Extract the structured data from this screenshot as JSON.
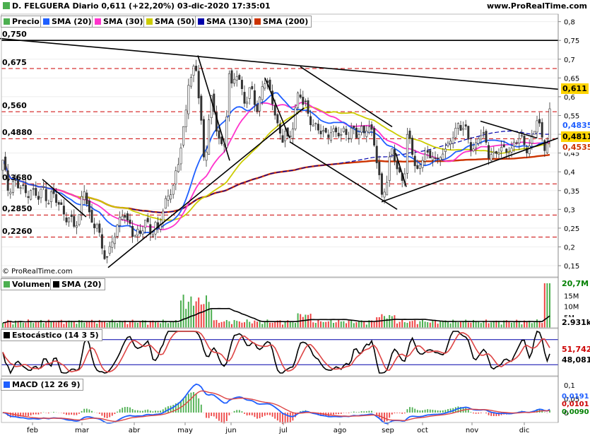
{
  "header": {
    "title": "D. FELGUERA Diario 0,611 (+22,20%) 03-dic-2020 17:35:01",
    "site": "www.ProRealTime.com",
    "copyright": "© ProRealTime.com"
  },
  "colors": {
    "price": "#4caf50",
    "sma20": "#1f5fff",
    "sma30": "#ff33cc",
    "sma50": "#cccc00",
    "sma130": "#0000aa",
    "sma200": "#cc3300",
    "candle_up": "#008000",
    "candle_down": "#cc0000",
    "dashed": "#cc0000"
  },
  "price_panel": {
    "legend": [
      {
        "label": "Precio",
        "color": "#4caf50",
        "icon": "candle-icon"
      },
      {
        "label": "SMA (20)",
        "color": "#1f5fff"
      },
      {
        "label": "SMA (30)",
        "color": "#ff33cc"
      },
      {
        "label": "SMA (50)",
        "color": "#cccc00"
      },
      {
        "label": "SMA (130)",
        "color": "#0000aa"
      },
      {
        "label": "SMA (200)",
        "color": "#cc3300"
      }
    ],
    "y_ticks": [
      "0,8",
      "0,75",
      "0,7",
      "0,65",
      "0,6",
      "0,55",
      "0,5",
      "0,45",
      "0,4",
      "0,35",
      "0,3",
      "0,25",
      "0,2",
      "0,15"
    ],
    "level_labels": [
      "0,750",
      "0,675",
      "0,560",
      "0,4880",
      "0,3680",
      "0,2850",
      "0,2260"
    ],
    "right_tags": [
      {
        "text": "0,611",
        "color": "#000000",
        "bg": "#ffd400"
      },
      {
        "text": "0,4835",
        "color": "#1f5fff",
        "bg": "#ffffff"
      },
      {
        "text": "0,4811",
        "color": "#000000",
        "bg": "#ffd400"
      },
      {
        "text": "0,4535",
        "color": "#cc3300",
        "bg": "#ffffff"
      }
    ]
  },
  "volume_panel": {
    "legend": [
      {
        "label": "Volumen",
        "color": "#4caf50"
      },
      {
        "label": "SMA (20)",
        "color": "#000000"
      }
    ],
    "y_ticks": [
      "15M",
      "10M",
      "5M"
    ],
    "right_tags": [
      {
        "text": "20,7M",
        "color": "#008000"
      },
      {
        "text": "2.931k",
        "color": "#000000"
      }
    ]
  },
  "stochastic_panel": {
    "legend": "Estocástico (14 3 5)",
    "right_tags": [
      {
        "text": "51,742",
        "color": "#cc0000"
      },
      {
        "text": "48,081",
        "color": "#000000"
      }
    ]
  },
  "macd_panel": {
    "legend": "MACD (12 26 9)",
    "y_ticks": [
      "0,1",
      "0,05",
      "0"
    ],
    "right_tags": [
      {
        "text": "0,0191",
        "color": "#1f5fff"
      },
      {
        "text": "0,0101",
        "color": "#cc0000"
      },
      {
        "text": "0,0090",
        "color": "#008000"
      }
    ]
  },
  "x_axis": {
    "months": [
      "feb",
      "mar",
      "abr",
      "may",
      "jun",
      "jul",
      "ago",
      "sep",
      "oct",
      "nov",
      "dic"
    ]
  },
  "chart_data": {
    "type": "candlestick",
    "title": "D. FELGUERA Diario 0,611 (+22,20%) 03-dic-2020 17:35:01",
    "last_close": 0.611,
    "change_pct": 22.2,
    "ylim": [
      0.12,
      0.82
    ],
    "x_categories": [
      "feb",
      "mar",
      "abr",
      "may",
      "jun",
      "jul",
      "ago",
      "sep",
      "oct",
      "nov",
      "dic"
    ],
    "horizontal_levels": [
      0.75,
      0.675,
      0.56,
      0.488,
      0.368,
      0.285,
      0.226
    ],
    "price_path": [
      [
        0,
        0.4
      ],
      [
        3,
        0.43
      ],
      [
        6,
        0.41
      ],
      [
        9,
        0.37
      ],
      [
        12,
        0.35
      ],
      [
        16,
        0.37
      ],
      [
        20,
        0.38
      ],
      [
        24,
        0.36
      ],
      [
        28,
        0.36
      ],
      [
        32,
        0.35
      ],
      [
        36,
        0.34
      ],
      [
        40,
        0.35
      ],
      [
        44,
        0.36
      ],
      [
        48,
        0.34
      ],
      [
        52,
        0.33
      ],
      [
        56,
        0.33
      ],
      [
        60,
        0.36
      ],
      [
        64,
        0.34
      ],
      [
        68,
        0.33
      ],
      [
        72,
        0.34
      ],
      [
        76,
        0.33
      ],
      [
        80,
        0.32
      ],
      [
        84,
        0.31
      ],
      [
        88,
        0.3
      ],
      [
        92,
        0.29
      ],
      [
        96,
        0.28
      ],
      [
        100,
        0.27
      ],
      [
        104,
        0.25
      ],
      [
        108,
        0.26
      ],
      [
        112,
        0.28
      ],
      [
        116,
        0.34
      ],
      [
        120,
        0.37
      ],
      [
        124,
        0.3
      ],
      [
        128,
        0.26
      ],
      [
        132,
        0.25
      ],
      [
        136,
        0.27
      ],
      [
        140,
        0.24
      ],
      [
        144,
        0.21
      ],
      [
        148,
        0.18
      ],
      [
        152,
        0.16
      ],
      [
        156,
        0.19
      ],
      [
        160,
        0.23
      ],
      [
        164,
        0.24
      ],
      [
        168,
        0.27
      ],
      [
        172,
        0.3
      ],
      [
        176,
        0.28
      ],
      [
        180,
        0.25
      ],
      [
        184,
        0.26
      ],
      [
        188,
        0.24
      ],
      [
        192,
        0.23
      ],
      [
        196,
        0.25
      ],
      [
        200,
        0.24
      ],
      [
        204,
        0.25
      ],
      [
        208,
        0.26
      ],
      [
        212,
        0.25
      ],
      [
        216,
        0.24
      ],
      [
        220,
        0.26
      ],
      [
        224,
        0.25
      ],
      [
        228,
        0.27
      ],
      [
        232,
        0.29
      ],
      [
        236,
        0.33
      ],
      [
        240,
        0.36
      ],
      [
        244,
        0.35
      ],
      [
        248,
        0.39
      ],
      [
        252,
        0.42
      ],
      [
        256,
        0.46
      ],
      [
        260,
        0.51
      ],
      [
        264,
        0.58
      ],
      [
        268,
        0.68
      ],
      [
        272,
        0.64
      ],
      [
        276,
        0.7
      ],
      [
        280,
        0.62
      ],
      [
        284,
        0.55
      ],
      [
        288,
        0.43
      ],
      [
        292,
        0.47
      ],
      [
        296,
        0.56
      ],
      [
        300,
        0.6
      ],
      [
        304,
        0.53
      ],
      [
        308,
        0.5
      ],
      [
        312,
        0.47
      ],
      [
        316,
        0.46
      ],
      [
        320,
        0.54
      ],
      [
        324,
        0.66
      ],
      [
        328,
        0.62
      ],
      [
        332,
        0.65
      ],
      [
        336,
        0.66
      ],
      [
        340,
        0.63
      ],
      [
        344,
        0.62
      ],
      [
        348,
        0.58
      ],
      [
        352,
        0.6
      ],
      [
        356,
        0.62
      ],
      [
        360,
        0.59
      ],
      [
        364,
        0.56
      ],
      [
        368,
        0.6
      ],
      [
        372,
        0.65
      ],
      [
        376,
        0.64
      ],
      [
        380,
        0.61
      ],
      [
        384,
        0.6
      ],
      [
        388,
        0.57
      ],
      [
        392,
        0.53
      ],
      [
        396,
        0.51
      ],
      [
        400,
        0.49
      ],
      [
        404,
        0.5
      ],
      [
        408,
        0.47
      ],
      [
        412,
        0.51
      ],
      [
        416,
        0.54
      ],
      [
        420,
        0.6
      ],
      [
        424,
        0.62
      ],
      [
        428,
        0.58
      ],
      [
        432,
        0.57
      ],
      [
        436,
        0.55
      ],
      [
        440,
        0.54
      ],
      [
        444,
        0.53
      ],
      [
        448,
        0.52
      ],
      [
        452,
        0.51
      ],
      [
        456,
        0.5
      ],
      [
        460,
        0.49
      ],
      [
        464,
        0.5
      ],
      [
        468,
        0.52
      ],
      [
        472,
        0.51
      ],
      [
        476,
        0.5
      ],
      [
        480,
        0.5
      ],
      [
        484,
        0.49
      ],
      [
        488,
        0.51
      ],
      [
        492,
        0.5
      ],
      [
        496,
        0.52
      ],
      [
        500,
        0.51
      ],
      [
        504,
        0.49
      ],
      [
        508,
        0.5
      ],
      [
        512,
        0.51
      ],
      [
        516,
        0.5
      ],
      [
        520,
        0.54
      ],
      [
        524,
        0.52
      ],
      [
        528,
        0.48
      ],
      [
        532,
        0.44
      ],
      [
        536,
        0.4
      ],
      [
        540,
        0.33
      ],
      [
        544,
        0.36
      ],
      [
        548,
        0.39
      ],
      [
        552,
        0.44
      ],
      [
        556,
        0.45
      ],
      [
        560,
        0.42
      ],
      [
        564,
        0.4
      ],
      [
        568,
        0.38
      ],
      [
        572,
        0.39
      ],
      [
        576,
        0.5
      ],
      [
        580,
        0.47
      ],
      [
        584,
        0.44
      ],
      [
        588,
        0.42
      ],
      [
        592,
        0.4
      ],
      [
        596,
        0.43
      ],
      [
        600,
        0.46
      ],
      [
        604,
        0.44
      ],
      [
        608,
        0.42
      ],
      [
        612,
        0.45
      ],
      [
        616,
        0.44
      ],
      [
        620,
        0.43
      ],
      [
        624,
        0.45
      ],
      [
        628,
        0.46
      ],
      [
        632,
        0.44
      ],
      [
        636,
        0.48
      ],
      [
        640,
        0.5
      ],
      [
        644,
        0.51
      ],
      [
        648,
        0.53
      ],
      [
        652,
        0.52
      ],
      [
        656,
        0.51
      ],
      [
        660,
        0.5
      ],
      [
        664,
        0.48
      ],
      [
        668,
        0.47
      ],
      [
        672,
        0.46
      ],
      [
        676,
        0.49
      ],
      [
        680,
        0.5
      ],
      [
        684,
        0.49
      ],
      [
        688,
        0.47
      ],
      [
        692,
        0.45
      ],
      [
        696,
        0.46
      ],
      [
        700,
        0.44
      ],
      [
        704,
        0.45
      ],
      [
        708,
        0.46
      ],
      [
        712,
        0.45
      ],
      [
        716,
        0.46
      ],
      [
        720,
        0.47
      ],
      [
        724,
        0.46
      ],
      [
        728,
        0.47
      ],
      [
        732,
        0.48
      ],
      [
        736,
        0.49
      ],
      [
        740,
        0.48
      ],
      [
        744,
        0.47
      ],
      [
        748,
        0.47
      ],
      [
        752,
        0.48
      ],
      [
        756,
        0.5
      ],
      [
        760,
        0.54
      ],
      [
        764,
        0.52
      ],
      [
        768,
        0.48
      ],
      [
        772,
        0.47
      ],
      [
        776,
        0.5
      ],
      [
        780,
        0.61
      ]
    ],
    "trendlines": [
      [
        [
          0,
          0.755
        ],
        [
          790,
          0.62
        ]
      ],
      [
        [
          153,
          0.145
        ],
        [
          430,
          0.57
        ]
      ],
      [
        [
          280,
          0.71
        ],
        [
          325,
          0.43
        ]
      ],
      [
        [
          375,
          0.65
        ],
        [
          410,
          0.49
        ]
      ],
      [
        [
          425,
          0.68
        ],
        [
          555,
          0.52
        ]
      ],
      [
        [
          410,
          0.48
        ],
        [
          562,
          0.3
        ]
      ],
      [
        [
          540,
          0.32
        ],
        [
          790,
          0.49
        ]
      ],
      [
        [
          680,
          0.535
        ],
        [
          760,
          0.49
        ]
      ],
      [
        [
          60,
          0.38
        ],
        [
          122,
          0.28
        ]
      ],
      [
        [
          560,
          0.45
        ],
        [
          575,
          0.36
        ]
      ]
    ]
  }
}
